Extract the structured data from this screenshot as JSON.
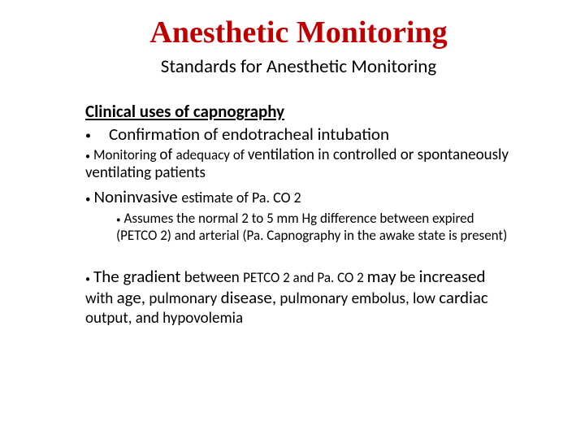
{
  "colors": {
    "title": "#c00000",
    "body": "#000000",
    "background": "#ffffff"
  },
  "typography": {
    "title_family": "Times New Roman",
    "body_family": "Calibri",
    "title_size_pt": 38,
    "subtitle_size_pt": 23,
    "body_size_pt": 21,
    "small_body_size_pt": 19,
    "sub_indent_size_pt": 17
  },
  "title": "Anesthetic Monitoring",
  "subtitle": "Standards for Anesthetic Monitoring",
  "heading": "Clinical uses of capnography",
  "bullets": {
    "confirm": "Confirmation of endotracheal intubation",
    "monitor": "Monitoring of adequacy of ventilation in controlled or spontaneously ventilating patients",
    "noninvasive": "Noninvasive estimate of Pa. CO 2",
    "assumes": "Assumes the normal 2 to 5 mm Hg difference between expired (PETCO 2) and arterial (Pa. Capnography  in the awake state is present)",
    "gradient": "The gradient between PETCO 2 and Pa. CO 2 may be increased with age, pulmonary disease, pulmonary embolus, low cardiac output, and hypovolemia"
  }
}
